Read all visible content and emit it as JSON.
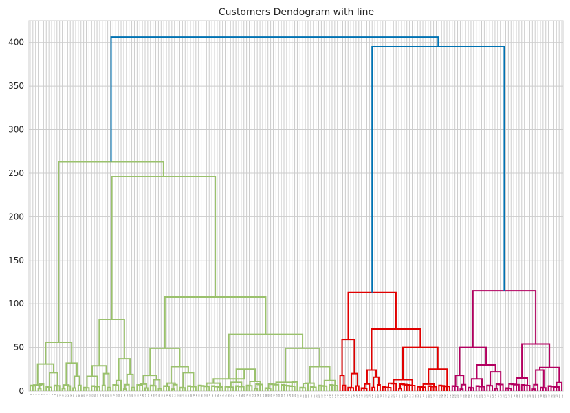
{
  "chart_data": {
    "type": "dendrogram",
    "title": "Customers Dendogram with line",
    "xlabel": "",
    "ylabel": "",
    "ylim": [
      0,
      425
    ],
    "yticks": [
      0,
      50,
      100,
      150,
      200,
      250,
      300,
      350,
      400
    ],
    "leaf_count": 200,
    "grid": true,
    "colors": {
      "background": "#ffffff",
      "grid": "#cccccc",
      "axes_border": "#cccccc",
      "link_root": "#0072b2",
      "cluster_1": "#9ac16c",
      "cluster_2": "#e00000",
      "cluster_3": "#b30060"
    },
    "series": [
      {
        "cluster": "cluster_1",
        "leaves": [
          0,
          115
        ],
        "merge_height": 263
      },
      {
        "cluster": "cluster_2",
        "leaves": [
          116,
          157
        ],
        "merge_height": 113
      },
      {
        "cluster": "cluster_3",
        "leaves": [
          158,
          199
        ],
        "merge_height": 115
      }
    ],
    "links": [
      {
        "color": "root",
        "left": [
          0,
          115
        ],
        "right": [
          116,
          199
        ],
        "height": 406
      },
      {
        "color": "root",
        "left": [
          116,
          157
        ],
        "right": [
          158,
          199
        ],
        "height": 395
      },
      {
        "color": "cluster_1",
        "left": [
          0,
          19
        ],
        "right": [
          20,
          115
        ],
        "height": 263
      },
      {
        "color": "cluster_1",
        "left": [
          0,
          11
        ],
        "right": [
          12,
          19
        ],
        "height": 56
      },
      {
        "color": "cluster_1",
        "left": [
          0,
          5
        ],
        "right": [
          6,
          11
        ],
        "height": 31
      },
      {
        "color": "cluster_1",
        "left": [
          0,
          2
        ],
        "right": [
          3,
          5
        ],
        "height": 7
      },
      {
        "color": "cluster_1",
        "left": [
          6,
          8
        ],
        "right": [
          9,
          11
        ],
        "height": 21
      },
      {
        "color": "cluster_1",
        "left": [
          12,
          15
        ],
        "right": [
          16,
          19
        ],
        "height": 32
      },
      {
        "color": "cluster_1",
        "left": [
          12,
          13
        ],
        "right": [
          14,
          15
        ],
        "height": 7
      },
      {
        "color": "cluster_1",
        "left": [
          16,
          17
        ],
        "right": [
          18,
          19
        ],
        "height": 17
      },
      {
        "color": "cluster_1",
        "left": [
          20,
          39
        ],
        "right": [
          40,
          115
        ],
        "height": 246
      },
      {
        "color": "cluster_1",
        "left": [
          20,
          30
        ],
        "right": [
          31,
          39
        ],
        "height": 82
      },
      {
        "color": "cluster_1",
        "left": [
          20,
          26
        ],
        "right": [
          27,
          30
        ],
        "height": 29
      },
      {
        "color": "cluster_1",
        "left": [
          20,
          22
        ],
        "right": [
          23,
          26
        ],
        "height": 17
      },
      {
        "color": "cluster_1",
        "left": [
          27,
          28
        ],
        "right": [
          29,
          30
        ],
        "height": 20
      },
      {
        "color": "cluster_1",
        "left": [
          31,
          34
        ],
        "right": [
          35,
          39
        ],
        "height": 37
      },
      {
        "color": "cluster_1",
        "left": [
          31,
          33
        ],
        "right": [
          34,
          34
        ],
        "height": 12
      },
      {
        "color": "cluster_1",
        "left": [
          35,
          37
        ],
        "right": [
          38,
          39
        ],
        "height": 19
      },
      {
        "color": "cluster_1",
        "left": [
          40,
          62
        ],
        "right": [
          63,
          115
        ],
        "height": 108
      },
      {
        "color": "cluster_1",
        "left": [
          40,
          49
        ],
        "right": [
          50,
          62
        ],
        "height": 49
      },
      {
        "color": "cluster_1",
        "left": [
          40,
          44
        ],
        "right": [
          45,
          49
        ],
        "height": 18
      },
      {
        "color": "cluster_1",
        "left": [
          40,
          42
        ],
        "right": [
          43,
          44
        ],
        "height": 8
      },
      {
        "color": "cluster_1",
        "left": [
          45,
          47
        ],
        "right": [
          48,
          49
        ],
        "height": 13
      },
      {
        "color": "cluster_1",
        "left": [
          50,
          55
        ],
        "right": [
          56,
          62
        ],
        "height": 28
      },
      {
        "color": "cluster_1",
        "left": [
          50,
          52
        ],
        "right": [
          53,
          55
        ],
        "height": 9
      },
      {
        "color": "cluster_1",
        "left": [
          56,
          58
        ],
        "right": [
          59,
          62
        ],
        "height": 21
      },
      {
        "color": "cluster_1",
        "left": [
          63,
          87
        ],
        "right": [
          88,
          115
        ],
        "height": 65
      },
      {
        "color": "cluster_1",
        "left": [
          63,
          72
        ],
        "right": [
          73,
          87
        ],
        "height": 14
      },
      {
        "color": "cluster_1",
        "left": [
          63,
          67
        ],
        "right": [
          68,
          72
        ],
        "height": 9
      },
      {
        "color": "cluster_1",
        "left": [
          73,
          80
        ],
        "right": [
          81,
          87
        ],
        "height": 25
      },
      {
        "color": "cluster_1",
        "left": [
          73,
          76
        ],
        "right": [
          77,
          80
        ],
        "height": 10
      },
      {
        "color": "cluster_1",
        "left": [
          81,
          83
        ],
        "right": [
          84,
          87
        ],
        "height": 11
      },
      {
        "color": "cluster_1",
        "left": [
          88,
          100
        ],
        "right": [
          101,
          115
        ],
        "height": 49
      },
      {
        "color": "cluster_1",
        "left": [
          88,
          93
        ],
        "right": [
          94,
          100
        ],
        "height": 10
      },
      {
        "color": "cluster_1",
        "left": [
          101,
          107
        ],
        "right": [
          108,
          115
        ],
        "height": 28
      },
      {
        "color": "cluster_1",
        "left": [
          101,
          104
        ],
        "right": [
          105,
          107
        ],
        "height": 9
      },
      {
        "color": "cluster_1",
        "left": [
          108,
          111
        ],
        "right": [
          112,
          115
        ],
        "height": 12
      },
      {
        "color": "cluster_2",
        "left": [
          116,
          123
        ],
        "right": [
          124,
          157
        ],
        "height": 113
      },
      {
        "color": "cluster_2",
        "left": [
          116,
          118
        ],
        "right": [
          119,
          123
        ],
        "height": 59
      },
      {
        "color": "cluster_2",
        "left": [
          116,
          116
        ],
        "right": [
          117,
          118
        ],
        "height": 18
      },
      {
        "color": "cluster_2",
        "left": [
          119,
          121
        ],
        "right": [
          122,
          123
        ],
        "height": 20
      },
      {
        "color": "cluster_2",
        "left": [
          124,
          131
        ],
        "right": [
          132,
          157
        ],
        "height": 71
      },
      {
        "color": "cluster_2",
        "left": [
          124,
          127
        ],
        "right": [
          128,
          131
        ],
        "height": 24
      },
      {
        "color": "cluster_2",
        "left": [
          128,
          129
        ],
        "right": [
          130,
          131
        ],
        "height": 16
      },
      {
        "color": "cluster_2",
        "left": [
          132,
          144
        ],
        "right": [
          145,
          157
        ],
        "height": 50
      },
      {
        "color": "cluster_2",
        "left": [
          132,
          137
        ],
        "right": [
          138,
          144
        ],
        "height": 13
      },
      {
        "color": "cluster_2",
        "left": [
          145,
          152
        ],
        "right": [
          153,
          157
        ],
        "height": 25
      },
      {
        "color": "cluster_2",
        "left": [
          145,
          148
        ],
        "right": [
          149,
          152
        ],
        "height": 8
      },
      {
        "color": "cluster_3",
        "left": [
          158,
          177
        ],
        "right": [
          178,
          199
        ],
        "height": 115
      },
      {
        "color": "cluster_3",
        "left": [
          158,
          163
        ],
        "right": [
          164,
          177
        ],
        "height": 50
      },
      {
        "color": "cluster_3",
        "left": [
          158,
          160
        ],
        "right": [
          161,
          163
        ],
        "height": 18
      },
      {
        "color": "cluster_3",
        "left": [
          164,
          170
        ],
        "right": [
          171,
          177
        ],
        "height": 30
      },
      {
        "color": "cluster_3",
        "left": [
          164,
          166
        ],
        "right": [
          167,
          170
        ],
        "height": 14
      },
      {
        "color": "cluster_3",
        "left": [
          171,
          173
        ],
        "right": [
          174,
          177
        ],
        "height": 22
      },
      {
        "color": "cluster_3",
        "left": [
          178,
          187
        ],
        "right": [
          188,
          199
        ],
        "height": 54
      },
      {
        "color": "cluster_3",
        "left": [
          178,
          183
        ],
        "right": [
          184,
          187
        ],
        "height": 15
      },
      {
        "color": "cluster_3",
        "left": [
          188,
          193
        ],
        "right": [
          194,
          199
        ],
        "height": 27
      },
      {
        "color": "cluster_3",
        "left": [
          188,
          190
        ],
        "right": [
          191,
          193
        ],
        "height": 24
      }
    ]
  }
}
